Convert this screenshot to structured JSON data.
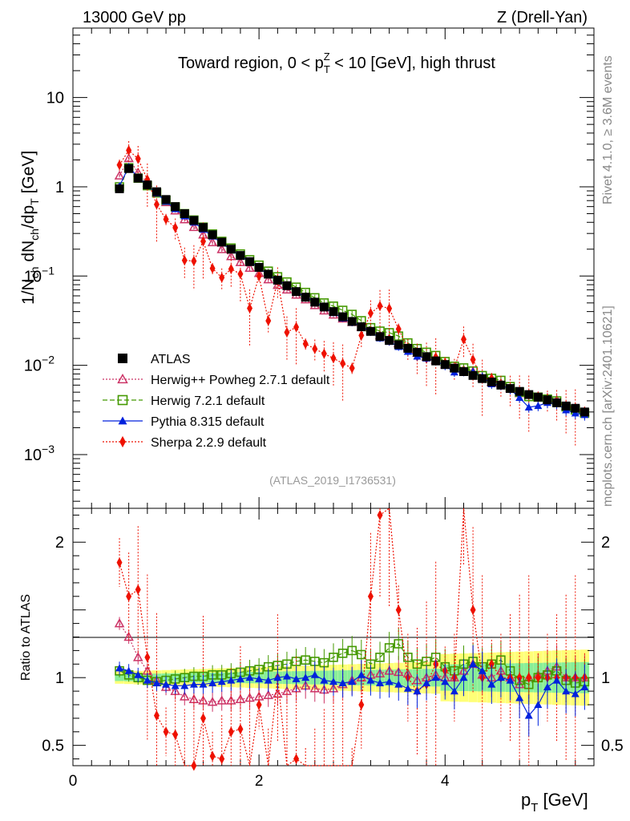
{
  "header": {
    "energy_label": "13000 GeV pp",
    "process_label": "Z (Drell-Yan)",
    "side_label_top": "Rivet 4.1.0, ≥ 3.6M events",
    "side_label_bottom": "mcplots.cern.ch [arXiv:2401.10621]"
  },
  "chart_data": {
    "type": "scatter",
    "title": "Toward region, 0 < p_T^Z < 10 [GeV], high thrust",
    "analysis_id": "(ATLAS_2019_I1736531)",
    "xlabel": "p_T [GeV]",
    "ylabel": "1/N_ch dN_ch/dp_T [GeV]",
    "ratio_ylabel": "Ratio to ATLAS",
    "xlim": [
      0,
      5.6
    ],
    "ylim": [
      0.00025,
      60
    ],
    "ylog": true,
    "ratio_ylim": [
      0.35,
      2.25
    ],
    "x_ticks": [
      "0",
      "2",
      "4"
    ],
    "y_ticks": [
      {
        "value": 0.001,
        "base": "10",
        "exp": "−3"
      },
      {
        "value": 0.01,
        "base": "10",
        "exp": "−2"
      },
      {
        "value": 0.1,
        "base": "10",
        "exp": "−1"
      },
      {
        "value": 1,
        "base": "1",
        "exp": ""
      },
      {
        "value": 10,
        "base": "10",
        "exp": ""
      }
    ],
    "ratio_ticks": [
      "0.5",
      "1",
      "2"
    ],
    "x": [
      0.5,
      0.6,
      0.7,
      0.8,
      0.9,
      1.0,
      1.1,
      1.2,
      1.3,
      1.4,
      1.5,
      1.6,
      1.7,
      1.8,
      1.9,
      2.0,
      2.1,
      2.2,
      2.3,
      2.4,
      2.5,
      2.6,
      2.7,
      2.8,
      2.9,
      3.0,
      3.1,
      3.2,
      3.3,
      3.4,
      3.5,
      3.6,
      3.7,
      3.8,
      3.9,
      4.0,
      4.1,
      4.2,
      4.3,
      4.4,
      4.5,
      4.6,
      4.7,
      4.8,
      4.9,
      5.0,
      5.1,
      5.2,
      5.3,
      5.4,
      5.5
    ],
    "series": [
      {
        "name": "ATLAS",
        "color": "#000000",
        "marker": "square-filled",
        "values": [
          0.95,
          1.6,
          1.25,
          1.05,
          0.88,
          0.72,
          0.6,
          0.5,
          0.42,
          0.35,
          0.29,
          0.24,
          0.2,
          0.17,
          0.145,
          0.125,
          0.105,
          0.09,
          0.078,
          0.067,
          0.058,
          0.051,
          0.045,
          0.04,
          0.035,
          0.031,
          0.027,
          0.024,
          0.021,
          0.019,
          0.017,
          0.0155,
          0.014,
          0.0125,
          0.0112,
          0.0102,
          0.0093,
          0.0085,
          0.0077,
          0.0071,
          0.0065,
          0.006,
          0.0055,
          0.0051,
          0.0047,
          0.0044,
          0.0041,
          0.0038,
          0.0035,
          0.0033,
          0.003
        ]
      },
      {
        "name": "Herwig++ Powheg 2.7.1 default",
        "color": "#cc3366",
        "marker": "triangle-open",
        "dash": "dotted",
        "ratio": [
          1.4,
          1.3,
          1.15,
          1.05,
          0.98,
          0.93,
          0.9,
          0.86,
          0.84,
          0.83,
          0.82,
          0.83,
          0.83,
          0.84,
          0.85,
          0.86,
          0.87,
          0.88,
          0.9,
          0.92,
          0.94,
          0.92,
          0.91,
          0.92,
          0.95,
          0.98,
          1.0,
          1.02,
          1.03,
          1.05,
          1.04,
          1.03,
          0.98,
          1.0,
          1.02,
          1.0,
          1.0,
          1.05,
          1.1,
          1.02,
          1.0,
          1.05,
          1.0,
          0.95,
          1.0,
          1.02,
          1.05,
          1.08,
          1.0,
          1.0,
          1.0
        ]
      },
      {
        "name": "Herwig 7.2.1 default",
        "color": "#449900",
        "marker": "square-open",
        "dash": "dashed",
        "ratio": [
          1.05,
          1.02,
          1.0,
          0.98,
          0.97,
          0.98,
          0.99,
          1.0,
          1.01,
          1.01,
          1.02,
          1.02,
          1.03,
          1.04,
          1.05,
          1.06,
          1.08,
          1.09,
          1.1,
          1.12,
          1.13,
          1.12,
          1.11,
          1.15,
          1.18,
          1.2,
          1.17,
          1.1,
          1.15,
          1.22,
          1.25,
          1.15,
          1.1,
          1.12,
          1.15,
          1.08,
          1.05,
          1.1,
          1.12,
          1.08,
          1.1,
          1.13,
          1.05,
          0.98,
          0.95,
          1.0,
          1.02,
          1.05,
          0.98,
          0.96,
          0.97
        ]
      },
      {
        "name": "Pythia 8.315 default",
        "color": "#0022dd",
        "marker": "triangle-filled",
        "dash": "solid",
        "ratio": [
          1.07,
          1.05,
          1.02,
          0.98,
          0.96,
          0.95,
          0.94,
          0.94,
          0.95,
          0.95,
          0.96,
          0.97,
          0.98,
          0.99,
          1.0,
          0.99,
          0.98,
          1.0,
          1.01,
          0.99,
          1.0,
          1.02,
          0.98,
          0.97,
          0.96,
          0.97,
          1.02,
          0.98,
          0.96,
          0.97,
          0.95,
          0.92,
          0.9,
          0.96,
          1.0,
          0.97,
          0.9,
          1.0,
          1.1,
          1.05,
          0.95,
          1.0,
          0.98,
          0.85,
          0.72,
          0.8,
          0.93,
          0.98,
          0.9,
          0.88,
          0.93
        ]
      },
      {
        "name": "Sherpa 2.2.9 default",
        "color": "#ee1100",
        "marker": "diamond-filled",
        "dash": "dotted",
        "ratio": [
          1.85,
          1.6,
          1.65,
          1.15,
          0.72,
          0.6,
          0.58,
          0.3,
          0.35,
          0.7,
          0.42,
          0.4,
          0.6,
          0.62,
          0.3,
          0.8,
          0.3,
          1.0,
          0.3,
          0.4,
          0.3,
          0.3,
          0.3,
          0.3,
          0.3,
          0.3,
          0.8,
          1.6,
          2.2,
          2.28,
          1.5,
          1.0,
          0.9,
          0.95,
          1.1,
          1.05,
          1.0,
          2.3,
          1.5,
          1.0,
          1.1,
          1.0,
          1.0,
          1.0,
          1.0,
          1.0,
          1.0,
          1.0,
          1.0,
          1.0,
          1.0
        ]
      }
    ]
  }
}
